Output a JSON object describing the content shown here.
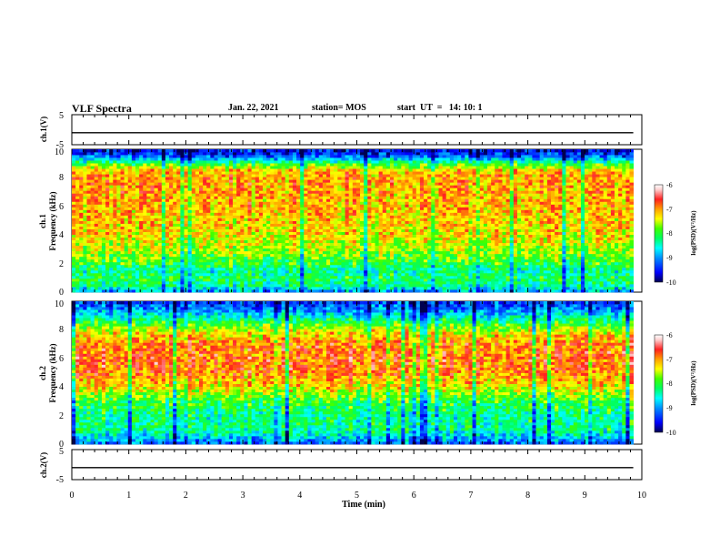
{
  "header": {
    "title": "VLF Spectra",
    "date": "Jan. 22, 2021",
    "station": "station= MOS",
    "start": "start  UT  =   14: 10: 1"
  },
  "colors": {
    "spectrogram_scale": [
      "#000050",
      "#0000ff",
      "#0090ff",
      "#00ffff",
      "#00ff60",
      "#40ff00",
      "#ffff00",
      "#ffa000",
      "#ff2020",
      "#ffd0d0",
      "#ffffff"
    ]
  },
  "chart_data": [
    {
      "type": "line",
      "panel": "ch1-waveform",
      "ylabel": "ch.1(V)",
      "ylim": [
        -5,
        5
      ],
      "yticks": [
        "5",
        "-5"
      ],
      "series": [
        {
          "x": [
            0,
            9.85
          ],
          "values": [
            -1,
            -1
          ]
        }
      ]
    },
    {
      "type": "heatmap",
      "panel": "ch1-spectrogram",
      "ylabel": "ch.1\nFrequency (kHz)",
      "ylim": [
        0,
        10
      ],
      "yticks": [
        "0",
        "2",
        "4",
        "6",
        "8",
        "10"
      ],
      "xlim": [
        0,
        10
      ],
      "data_end_min": 9.85,
      "colorbar": {
        "label": "log(PSD)(V²/Hz)",
        "range": [
          -10,
          -6
        ],
        "ticks": [
          "-6",
          "-7",
          "-8",
          "-9",
          "-10"
        ]
      },
      "profile": [
        {
          "f": 0.0,
          "v": -9.0
        },
        {
          "f": 0.5,
          "v": -8.3
        },
        {
          "f": 1.0,
          "v": -8.1
        },
        {
          "f": 1.5,
          "v": -8.4
        },
        {
          "f": 2.0,
          "v": -8.0
        },
        {
          "f": 3.0,
          "v": -7.6
        },
        {
          "f": 4.0,
          "v": -7.3
        },
        {
          "f": 6.0,
          "v": -7.1
        },
        {
          "f": 8.0,
          "v": -7.0
        },
        {
          "f": 8.5,
          "v": -7.1
        },
        {
          "f": 9.0,
          "v": -8.0
        },
        {
          "f": 9.5,
          "v": -9.2
        },
        {
          "f": 10.0,
          "v": -9.7
        }
      ]
    },
    {
      "type": "heatmap",
      "panel": "ch2-spectrogram",
      "ylabel": "ch.2\nFrequency (kHz)",
      "ylim": [
        0,
        10
      ],
      "yticks": [
        "0",
        "2",
        "4",
        "6",
        "8",
        "10"
      ],
      "xlim": [
        0,
        10
      ],
      "data_end_min": 9.85,
      "colorbar": {
        "label": "log(PSD)(V²/Hz)",
        "range": [
          -10,
          -6
        ],
        "ticks": [
          "-6",
          "-7",
          "-8",
          "-9",
          "-10"
        ]
      },
      "profile": [
        {
          "f": 0.0,
          "v": -9.2
        },
        {
          "f": 1.0,
          "v": -8.3
        },
        {
          "f": 2.0,
          "v": -8.3
        },
        {
          "f": 3.0,
          "v": -8.0
        },
        {
          "f": 4.0,
          "v": -7.3
        },
        {
          "f": 5.0,
          "v": -6.9
        },
        {
          "f": 6.0,
          "v": -6.8
        },
        {
          "f": 7.0,
          "v": -6.9
        },
        {
          "f": 7.8,
          "v": -7.3
        },
        {
          "f": 8.5,
          "v": -8.0
        },
        {
          "f": 9.0,
          "v": -8.6
        },
        {
          "f": 9.5,
          "v": -9.1
        },
        {
          "f": 10.0,
          "v": -9.4
        }
      ]
    },
    {
      "type": "line",
      "panel": "ch2-waveform",
      "ylabel": "ch.2(V)",
      "ylim": [
        -5,
        5
      ],
      "yticks": [
        "5",
        "-5"
      ],
      "series": [
        {
          "x": [
            0,
            9.85
          ],
          "values": [
            -1,
            -1
          ]
        }
      ]
    }
  ],
  "xaxis": {
    "label": "Time (min)",
    "ticks": [
      "0",
      "1",
      "2",
      "3",
      "4",
      "5",
      "6",
      "7",
      "8",
      "9",
      "10"
    ]
  }
}
